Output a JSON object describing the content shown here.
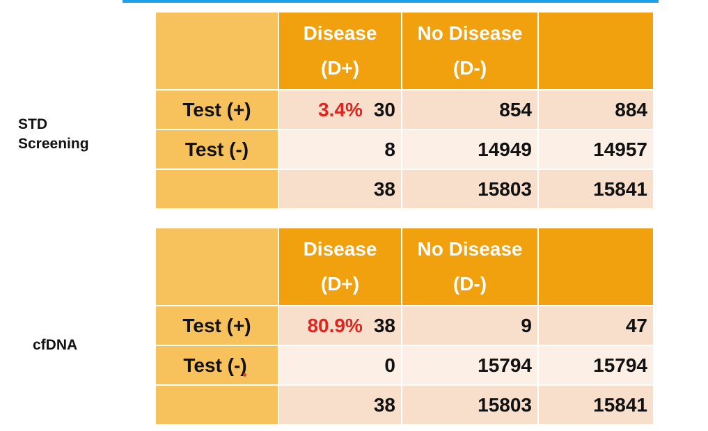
{
  "tables": [
    {
      "side_label_1": "STD",
      "side_label_2": "Screening",
      "header": {
        "col1_line1": "Disease",
        "col1_line2": "(D+)",
        "col2_line1": "No Disease",
        "col2_line2": "(D-)"
      },
      "rows": [
        {
          "label": "Test (+)",
          "percent": "3.4%",
          "d_pos": "30",
          "d_neg": "854",
          "total": "884"
        },
        {
          "label": "Test (-)",
          "percent": "",
          "d_pos": "8",
          "d_neg": "14949",
          "total": "14957"
        },
        {
          "label": "",
          "percent": "",
          "d_pos": "38",
          "d_neg": "15803",
          "total": "15841"
        }
      ]
    },
    {
      "side_label_1": "cfDNA",
      "side_label_2": "",
      "header": {
        "col1_line1": "Disease",
        "col1_line2": "(D+)",
        "col2_line1": "No Disease",
        "col2_line2": "(D-)"
      },
      "rows": [
        {
          "label": "Test (+)",
          "percent": "80.9%",
          "d_pos": "38",
          "d_neg": "9",
          "total": "47"
        },
        {
          "label": "Test (-)",
          "percent": "",
          "d_pos": "0",
          "d_neg": "15794",
          "total": "15794"
        },
        {
          "label": "",
          "percent": "",
          "d_pos": "38",
          "d_neg": "15803",
          "total": "15841"
        }
      ]
    }
  ],
  "colors": {
    "header_orange": "#f0a10d",
    "label_gold": "#f7c25b",
    "row_peach": "#f7dfcc",
    "row_light": "#fbefe6",
    "percent_red": "#e02520",
    "top_rule_blue": "#1ea0ea"
  }
}
